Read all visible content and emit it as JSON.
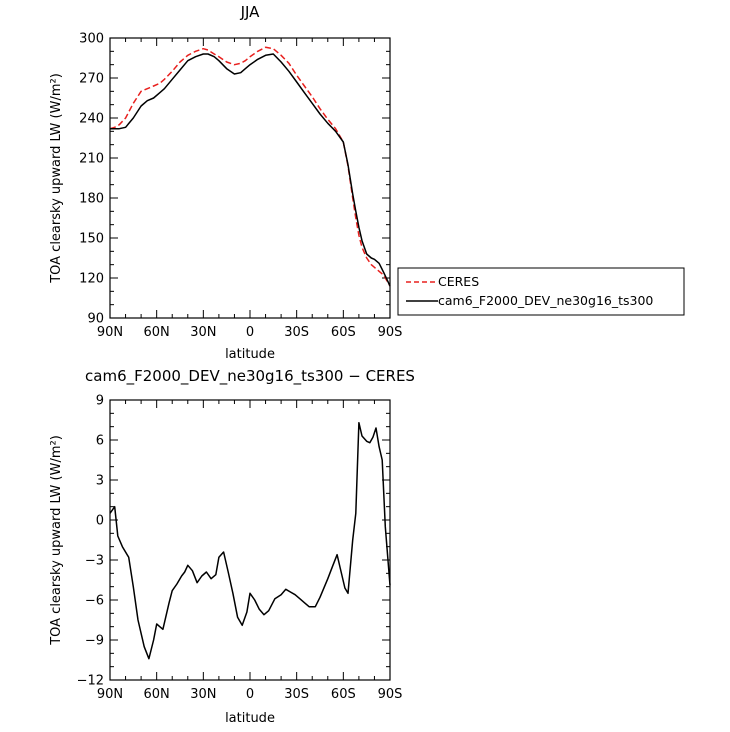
{
  "chart_data": [
    {
      "type": "line",
      "title": "JJA",
      "xlabel": "latitude",
      "ylabel": "TOA clearsky upward LW (W/m²)",
      "xlim": [
        90,
        -90
      ],
      "ylim": [
        90,
        300
      ],
      "xticks": [
        90,
        60,
        30,
        0,
        -30,
        -60,
        -90
      ],
      "xtick_labels": [
        "90N",
        "60N",
        "30N",
        "0",
        "30S",
        "60S",
        "90S"
      ],
      "yticks": [
        90,
        120,
        150,
        180,
        210,
        240,
        270,
        300
      ],
      "ytick_labels": [
        "90",
        "120",
        "150",
        "180",
        "210",
        "240",
        "270",
        "300"
      ],
      "legend": {
        "placement": "outside-right-bottom"
      },
      "series": [
        {
          "name": "CERES",
          "color": "#e8201e",
          "style": "dashed",
          "x": [
            90,
            87,
            84,
            80,
            75,
            70,
            66,
            62,
            58,
            55,
            50,
            45,
            40,
            35,
            30,
            27,
            23,
            20,
            15,
            10,
            6,
            3,
            0,
            -5,
            -10,
            -15,
            -20,
            -25,
            -30,
            -35,
            -40,
            -45,
            -50,
            -55,
            -60,
            -63,
            -66,
            -68,
            -70,
            -72,
            -75,
            -78,
            -80,
            -83,
            -86,
            -88,
            -90
          ],
          "y": [
            232,
            233,
            235,
            240,
            251,
            260,
            262,
            264,
            266,
            269,
            275,
            282,
            287,
            290,
            292,
            291,
            288,
            286,
            282,
            280,
            281,
            283,
            286,
            290,
            293,
            292,
            287,
            281,
            272,
            264,
            256,
            247,
            239,
            232,
            222,
            204,
            180,
            165,
            152,
            143,
            135,
            130,
            128,
            125,
            122,
            118,
            114
          ]
        },
        {
          "name": "cam6_F2000_DEV_ne30g16_ts300",
          "color": "#000000",
          "style": "solid",
          "x": [
            90,
            87,
            84,
            80,
            75,
            70,
            66,
            62,
            58,
            55,
            50,
            45,
            40,
            35,
            30,
            27,
            23,
            20,
            15,
            10,
            6,
            3,
            0,
            -5,
            -10,
            -15,
            -20,
            -25,
            -30,
            -35,
            -40,
            -45,
            -50,
            -55,
            -60,
            -63,
            -66,
            -68,
            -70,
            -72,
            -75,
            -78,
            -80,
            -83,
            -86,
            -88,
            -90
          ],
          "y": [
            232,
            232,
            232,
            233,
            240,
            249,
            253,
            255,
            259,
            262,
            269,
            276,
            283,
            286,
            288,
            288,
            286,
            283,
            277,
            273,
            274,
            277,
            280,
            284,
            287,
            288,
            282,
            275,
            267,
            259,
            251,
            243,
            236,
            230,
            222,
            205,
            183,
            170,
            158,
            148,
            138,
            135,
            134,
            131,
            124,
            119,
            114
          ]
        }
      ]
    },
    {
      "type": "line",
      "title": "cam6_F2000_DEV_ne30g16_ts300 − CERES",
      "xlabel": "latitude",
      "ylabel": "TOA clearsky upward LW (W/m²)",
      "xlim": [
        90,
        -90
      ],
      "ylim": [
        -12,
        9
      ],
      "xticks": [
        90,
        60,
        30,
        0,
        -30,
        -60,
        -90
      ],
      "xtick_labels": [
        "90N",
        "60N",
        "30N",
        "0",
        "30S",
        "60S",
        "90S"
      ],
      "yticks": [
        -12,
        -9,
        -6,
        -3,
        0,
        3,
        6,
        9
      ],
      "ytick_labels": [
        "−12",
        "−9",
        "−6",
        "−3",
        "0",
        "3",
        "6",
        "9"
      ],
      "series": [
        {
          "color": "#000000",
          "style": "solid",
          "x": [
            90,
            87,
            85,
            82,
            78,
            75,
            72,
            68,
            65,
            62,
            60,
            58,
            56,
            52,
            50,
            47,
            44,
            42,
            40,
            37,
            34,
            31,
            28,
            25,
            22,
            20,
            17,
            14,
            11,
            8,
            5,
            2,
            0,
            -3,
            -6,
            -9,
            -12,
            -16,
            -20,
            -23,
            -26,
            -29,
            -32,
            -35,
            -38,
            -42,
            -45,
            -50,
            -53,
            -56,
            -58,
            -61,
            -63,
            -66,
            -68,
            -70,
            -72,
            -75,
            -77,
            -79,
            -81,
            -83,
            -85,
            -87,
            -90
          ],
          "y": [
            0.5,
            1.0,
            -1.2,
            -2.0,
            -2.8,
            -5.0,
            -7.5,
            -9.5,
            -10.4,
            -9.0,
            -7.8,
            -8.0,
            -8.2,
            -6.2,
            -5.3,
            -4.8,
            -4.2,
            -3.9,
            -3.4,
            -3.8,
            -4.7,
            -4.2,
            -3.9,
            -4.4,
            -4.1,
            -2.8,
            -2.4,
            -3.9,
            -5.5,
            -7.3,
            -7.9,
            -6.9,
            -5.5,
            -6.0,
            -6.7,
            -7.1,
            -6.8,
            -5.9,
            -5.6,
            -5.2,
            -5.4,
            -5.6,
            -5.9,
            -6.2,
            -6.5,
            -6.5,
            -5.8,
            -4.4,
            -3.5,
            -2.6,
            -3.6,
            -5.1,
            -5.5,
            -1.5,
            0.5,
            7.3,
            6.3,
            5.9,
            5.8,
            6.2,
            6.9,
            5.5,
            4.5,
            -0.5,
            -4.9
          ]
        }
      ]
    }
  ]
}
